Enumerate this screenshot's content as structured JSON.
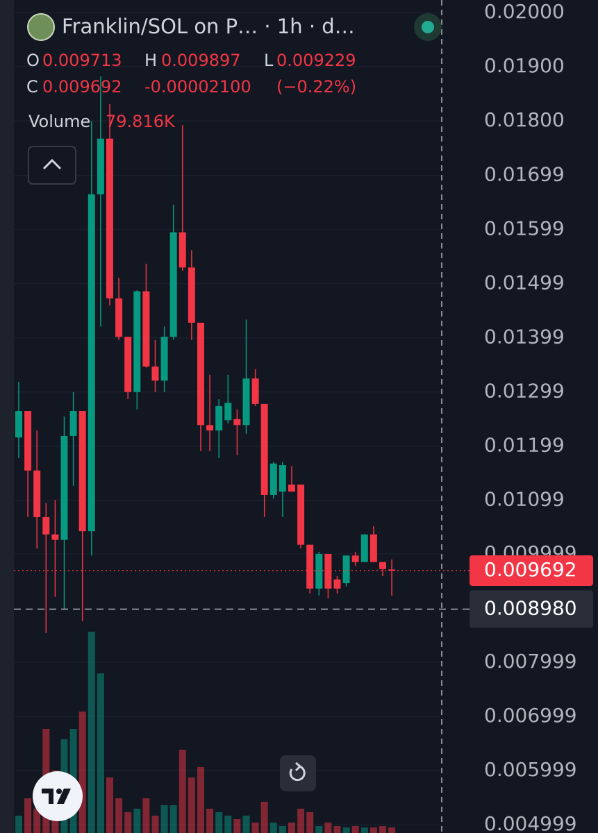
{
  "chart_data": {
    "type": "candlestick",
    "title": "Franklin/SOL on P… · 1h · d…",
    "header_letters": [
      "O",
      "H",
      "L",
      "C"
    ],
    "change": "-0.00002100",
    "change_percent": "(−0.22%)",
    "volume_name": "Volume",
    "volume_label": "79.816K",
    "up_color": "#089981",
    "down_color": "#f23645",
    "grid": true,
    "ylim": [
      0.004846,
      0.02023
    ],
    "yticks": [
      {
        "value": 0.02,
        "label": "0.02000"
      },
      {
        "value": 0.019,
        "label": "0.01900"
      },
      {
        "value": 0.018,
        "label": "0.01800"
      },
      0.01699,
      0.01599,
      0.01499,
      0.01399,
      0.01299,
      0.01199,
      0.01099,
      0.009999,
      0.007999,
      0.006999,
      0.005999,
      0.004999
    ],
    "marker_price": {
      "value": 0.00898,
      "label": "0.008980"
    },
    "open": [
      0.01215,
      0.01264,
      0.01154,
      0.01068,
      0.01036,
      0.01026,
      0.01218,
      0.01264,
      0.01042,
      0.01664,
      0.01767,
      0.01472,
      0.01401,
      0.01299,
      0.01485,
      0.01346,
      0.0132,
      0.01401,
      0.01594,
      0.01529,
      0.01427,
      0.01238,
      0.01228,
      0.01247,
      0.01249,
      0.01238,
      0.01324,
      0.01277,
      0.01109,
      0.01115,
      0.01128,
      0.01128,
      0.01017,
      0.00936,
      0.01,
      0.00953,
      0.00946,
      0.00997,
      0.00985,
      0.01036,
      0.00985,
      0.009713
    ],
    "high": [
      0.01318,
      0.01264,
      0.01228,
      0.01094,
      0.011,
      0.01254,
      0.01299,
      0.01264,
      0.01799,
      0.01882,
      0.01831,
      0.0151,
      0.01401,
      0.01487,
      0.01536,
      0.01395,
      0.0142,
      0.01645,
      0.01792,
      0.01561,
      0.01427,
      0.01331,
      0.01286,
      0.01331,
      0.01267,
      0.01433,
      0.01341,
      0.01277,
      0.0117,
      0.0117,
      0.01162,
      0.01128,
      0.01017,
      0.01004,
      0.01,
      0.00959,
      0.00997,
      0.01004,
      0.01036,
      0.01051,
      0.00985,
      0.009897
    ],
    "low": [
      0.01177,
      0.01068,
      0.0101,
      0.00854,
      0.00921,
      0.00898,
      0.01126,
      0.00876,
      0.00997,
      0.0142,
      0.01459,
      0.01395,
      0.01286,
      0.01267,
      0.01344,
      0.01299,
      0.01299,
      0.01395,
      0.01523,
      0.01395,
      0.0119,
      0.0119,
      0.01177,
      0.01241,
      0.01183,
      0.01222,
      0.01273,
      0.01068,
      0.01102,
      0.01068,
      0.01115,
      0.0101,
      0.00927,
      0.00923,
      0.00918,
      0.00927,
      0.0094,
      0.00978,
      0.00985,
      0.00985,
      0.00959,
      0.009229
    ],
    "close": [
      0.01264,
      0.01154,
      0.01068,
      0.01036,
      0.01026,
      0.01218,
      0.01264,
      0.01042,
      0.01664,
      0.01767,
      0.01472,
      0.01401,
      0.01299,
      0.01485,
      0.01346,
      0.0132,
      0.01401,
      0.01594,
      0.01529,
      0.01427,
      0.01238,
      0.01228,
      0.01273,
      0.01279,
      0.01238,
      0.01324,
      0.01277,
      0.01109,
      0.01167,
      0.01164,
      0.01115,
      0.01017,
      0.00936,
      0.01,
      0.00936,
      0.00936,
      0.00997,
      0.00985,
      0.01036,
      0.00985,
      0.00972,
      0.009692
    ],
    "volume": [
      250000,
      500000,
      350000,
      1500000,
      900000,
      1350000,
      1500000,
      1750000,
      2900000,
      2300000,
      800000,
      500000,
      300000,
      350000,
      500000,
      250000,
      400000,
      400000,
      1200000,
      800000,
      950000,
      350000,
      300000,
      250000,
      200000,
      250000,
      150000,
      450000,
      150000,
      100000,
      150000,
      350000,
      300000,
      100000,
      150000,
      100000,
      80000,
      100000,
      80000,
      80000,
      100000,
      79816
    ]
  }
}
